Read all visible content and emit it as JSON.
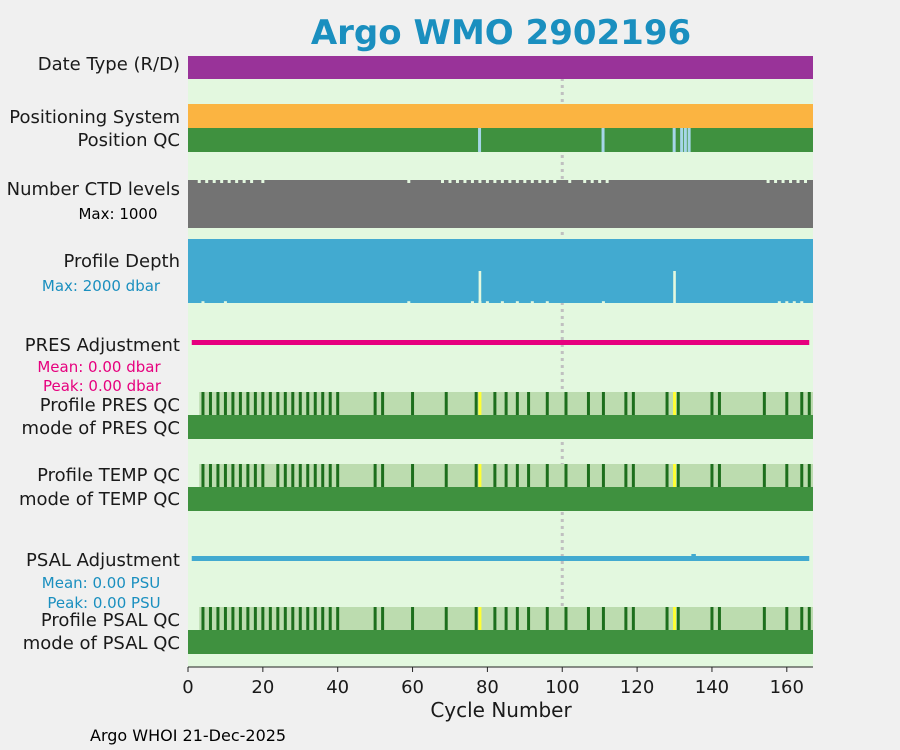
{
  "chart_data": {
    "type": "table",
    "title": "Argo WMO 2902196",
    "title_color": "#1a8fbf",
    "xlabel": "Cycle Number",
    "xlim": [
      0,
      167
    ],
    "xticks": [
      0,
      20,
      40,
      60,
      80,
      100,
      120,
      140,
      160
    ],
    "xtick_labels": [
      "0",
      "20",
      "40",
      "60",
      "80",
      "100",
      "120",
      "140",
      "160"
    ],
    "reference_line_x": 100,
    "footer": "Argo WHOI 21-Dec-2025",
    "row_labels": {
      "date_type": "Date Type (R/D)",
      "positioning_system": "Positioning System",
      "position_qc": "Position QC",
      "ctd_levels": "Number CTD levels",
      "ctd_max": "Max: 1000",
      "profile_depth": "Profile Depth",
      "depth_max": "Max: 2000 dbar",
      "pres_adjustment": "PRES Adjustment",
      "pres_mean": "Mean: 0.00 dbar",
      "pres_peak": "Peak: 0.00 dbar",
      "profile_pres_qc": "Profile PRES QC",
      "mode_pres_qc": "mode of PRES QC",
      "profile_temp_qc": "Profile TEMP QC",
      "mode_temp_qc": "mode of TEMP QC",
      "psal_adjustment": "PSAL Adjustment",
      "psal_mean": "Mean: 0.00 PSU",
      "psal_peak": "Peak: 0.00 PSU",
      "profile_psal_qc": "Profile PSAL QC",
      "mode_psal_qc": "mode of PSAL QC"
    },
    "colors": {
      "background_band": "#e3f8df",
      "date_type": "#993399",
      "positioning_system": "#fbb441",
      "position_qc_good": "#3f913f",
      "position_qc_gap": "#a6d6e8",
      "ctd_levels": "#737373",
      "profile_depth": "#42aad0",
      "pres_adjustment": "#e6007e",
      "psal_adjustment": "#42aad0",
      "qc_light": "#bcdcaf",
      "qc_dark": "#1d6e1d",
      "qc_mode": "#3f913f",
      "qc_flag": "#ffff33",
      "pres_sub_color": "#e6007e",
      "psal_sub_color": "#1a8fbf",
      "depth_sub_color": "#1a8fbf",
      "ref_line": "#c0c0c0"
    },
    "series": {
      "position_qc_gaps": [
        78,
        111,
        130,
        132,
        133,
        134
      ],
      "profile_depth_short_cycles": [
        78,
        130
      ],
      "profile_depth_min_fraction": 0.07,
      "profile_depth_short_fraction": 0.5,
      "ctd_notch_cycles": [
        3,
        5,
        7,
        9,
        11,
        13,
        15,
        17,
        20,
        59,
        68,
        70,
        72,
        74,
        76,
        78,
        80,
        82,
        84,
        86,
        88,
        90,
        92,
        94,
        96,
        98,
        102,
        106,
        108,
        110,
        112,
        155,
        157,
        159,
        161,
        163,
        165
      ],
      "depth_notch_cycles": [
        4,
        10,
        59,
        76,
        78,
        80,
        84,
        88,
        92,
        96,
        111,
        158,
        160,
        162,
        164
      ],
      "psal_adjustment_blip_cycle": 135,
      "pres_qc_dark_cycles": [
        4,
        6,
        8,
        10,
        12,
        14,
        16,
        18,
        20,
        22,
        24,
        26,
        28,
        30,
        32,
        34,
        36,
        38,
        40,
        50,
        52,
        60,
        69,
        77,
        82,
        85,
        88,
        91,
        96,
        101,
        107,
        111,
        117,
        119,
        128,
        131,
        140,
        142,
        154,
        160,
        164,
        166
      ],
      "temp_qc_dark_cycles": [
        4,
        6,
        8,
        10,
        12,
        14,
        16,
        18,
        20,
        24,
        26,
        28,
        30,
        32,
        34,
        36,
        38,
        40,
        50,
        52,
        60,
        69,
        77,
        82,
        85,
        88,
        91,
        96,
        101,
        107,
        111,
        117,
        119,
        128,
        131,
        140,
        142,
        154,
        160,
        164,
        166
      ],
      "psal_qc_dark_cycles": [
        4,
        6,
        8,
        10,
        12,
        14,
        16,
        18,
        20,
        22,
        24,
        26,
        28,
        30,
        32,
        34,
        36,
        38,
        40,
        50,
        52,
        60,
        69,
        77,
        82,
        85,
        88,
        91,
        96,
        101,
        107,
        111,
        117,
        119,
        128,
        131,
        140,
        142,
        154,
        160,
        164,
        166
      ],
      "qc_flag_cycles": [
        78,
        130
      ],
      "qc_light_range": [
        3,
        167
      ]
    }
  }
}
